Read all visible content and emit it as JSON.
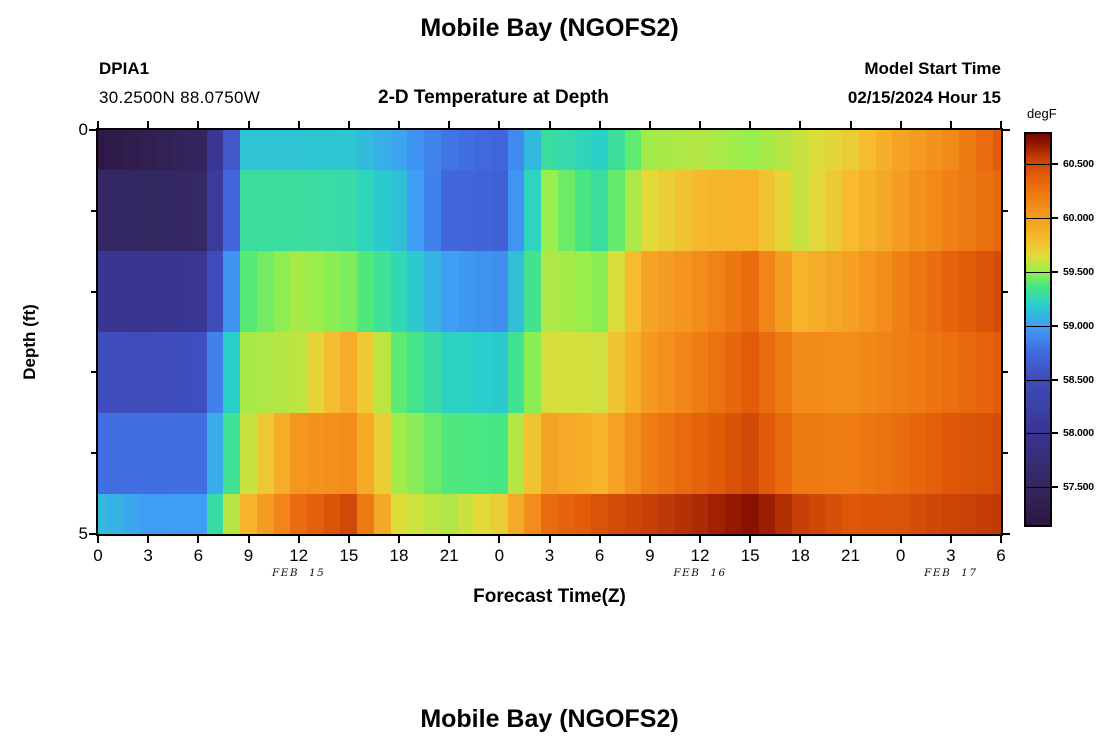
{
  "header": {
    "main_title": "Mobile Bay (NGOFS2)",
    "station_id": "DPIA1",
    "station_coords": "30.2500N  88.0750W",
    "plot_title": "2-D Temperature at Depth",
    "model_start_label": "Model Start Time",
    "model_start_value": "02/15/2024 Hour 15"
  },
  "footer": {
    "next_chart_title": "Mobile Bay (NGOFS2)"
  },
  "chart_data": {
    "type": "heatmap",
    "title": "2-D Temperature at Depth",
    "xlabel": "Forecast Time(Z)",
    "ylabel": "Depth (ft)",
    "colorbar_label": "degF",
    "x_axis": {
      "hours": [
        0,
        3,
        6,
        9,
        12,
        15,
        18,
        21,
        24,
        27,
        30,
        33,
        36,
        39,
        42,
        45,
        48,
        51,
        54
      ],
      "tick_labels": [
        "0",
        "3",
        "6",
        "9",
        "12",
        "15",
        "18",
        "21",
        "0",
        "3",
        "6",
        "9",
        "12",
        "15",
        "18",
        "21",
        "0",
        "3",
        "6"
      ],
      "range_hours": [
        0,
        54
      ],
      "date_labels": [
        {
          "text": "FEB 15",
          "hour": 12
        },
        {
          "text": "FEB 16",
          "hour": 36
        },
        {
          "text": "FEB 17",
          "hour": 51
        }
      ]
    },
    "y_axis": {
      "depths_ft": [
        0,
        1,
        2,
        3,
        4,
        5
      ],
      "major_ticks": [
        {
          "ft": 0,
          "label": "0"
        },
        {
          "ft": 5,
          "label": "5"
        }
      ],
      "minor_ticks_ft": [
        1,
        2,
        3,
        4
      ],
      "range_ft": [
        0,
        5
      ]
    },
    "colorbar": {
      "value_range": [
        57.15,
        60.78
      ],
      "ticks": [
        {
          "value": 60.5,
          "label": "60.500"
        },
        {
          "value": 60.0,
          "label": "60.000"
        },
        {
          "value": 59.5,
          "label": "59.500"
        },
        {
          "value": 59.0,
          "label": "59.000"
        },
        {
          "value": 58.5,
          "label": "58.500"
        },
        {
          "value": 58.0,
          "label": "58.000"
        },
        {
          "value": 57.5,
          "label": "57.500"
        }
      ],
      "colormap_stops": [
        [
          57.15,
          "#2e1640"
        ],
        [
          57.5,
          "#33265e"
        ],
        [
          58.0,
          "#393490"
        ],
        [
          58.5,
          "#3f4cba"
        ],
        [
          58.75,
          "#4169e0"
        ],
        [
          59.0,
          "#3f9ff5"
        ],
        [
          59.2,
          "#29d0c8"
        ],
        [
          59.38,
          "#4ae87e"
        ],
        [
          59.5,
          "#97ee4c"
        ],
        [
          59.65,
          "#e0dc3a"
        ],
        [
          59.8,
          "#f6bb2e"
        ],
        [
          60.0,
          "#f59d22"
        ],
        [
          60.2,
          "#ef7d13"
        ],
        [
          60.4,
          "#e25c09"
        ],
        [
          60.55,
          "#c74005"
        ],
        [
          60.7,
          "#8f1402"
        ],
        [
          60.78,
          "#7a0403"
        ]
      ]
    },
    "grid": false,
    "values_unit": "degF",
    "sample_hours": [
      0,
      3,
      6,
      9,
      12,
      15,
      18,
      21,
      24,
      27,
      30,
      33,
      36,
      39,
      42,
      45,
      48,
      51,
      54
    ],
    "series": [
      {
        "name": "depth 0 ft",
        "depth_ft": 0,
        "values": [
          57.2,
          57.35,
          57.5,
          59.15,
          59.15,
          59.16,
          59.02,
          58.8,
          58.72,
          59.3,
          59.2,
          59.52,
          59.56,
          59.5,
          59.6,
          59.72,
          59.96,
          60.12,
          60.4
        ]
      },
      {
        "name": "depth 1 ft",
        "depth_ft": 1,
        "values": [
          57.55,
          57.52,
          57.57,
          59.3,
          59.3,
          59.28,
          59.13,
          58.73,
          58.68,
          59.5,
          59.3,
          59.66,
          59.82,
          59.85,
          59.6,
          59.8,
          60.0,
          60.18,
          60.32
        ]
      },
      {
        "name": "depth 2 ft",
        "depth_ft": 2,
        "values": [
          58.02,
          58.0,
          58.05,
          59.4,
          59.53,
          59.46,
          59.25,
          59.0,
          58.92,
          59.55,
          59.48,
          59.95,
          60.1,
          60.3,
          59.85,
          59.98,
          60.17,
          60.35,
          60.48
        ]
      },
      {
        "name": "depth 3 ft",
        "depth_ft": 3,
        "values": [
          58.52,
          58.5,
          58.53,
          59.53,
          59.58,
          59.9,
          59.41,
          59.22,
          59.18,
          59.63,
          59.62,
          60.02,
          60.2,
          60.4,
          60.12,
          60.1,
          60.18,
          60.28,
          60.4
        ]
      },
      {
        "name": "depth 4 ft",
        "depth_ft": 4,
        "values": [
          58.78,
          58.77,
          58.78,
          59.6,
          60.04,
          60.1,
          59.52,
          59.39,
          59.36,
          59.96,
          59.85,
          60.2,
          60.36,
          60.5,
          60.22,
          60.2,
          60.3,
          60.42,
          60.48
        ]
      },
      {
        "name": "depth 5 ft",
        "depth_ft": 5,
        "values": [
          59.12,
          58.99,
          59.0,
          59.85,
          60.3,
          60.5,
          59.64,
          59.55,
          59.72,
          60.3,
          60.45,
          60.55,
          60.62,
          60.72,
          60.55,
          60.42,
          60.45,
          60.53,
          60.57
        ]
      }
    ]
  }
}
